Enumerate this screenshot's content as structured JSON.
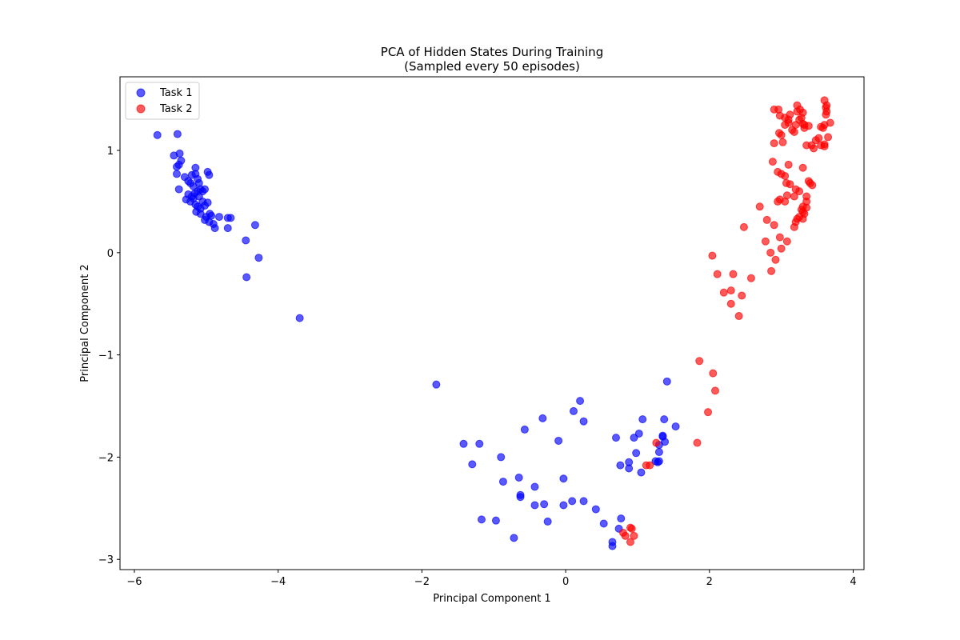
{
  "chart_data": {
    "type": "scatter",
    "title": "PCA of Hidden States During Training",
    "subtitle": "(Sampled every 50 episodes)",
    "xlabel": "Principal Component 1",
    "ylabel": "Principal Component 2",
    "xlim": [
      -6.2,
      4.15
    ],
    "ylim": [
      -3.1,
      1.72
    ],
    "xticks": [
      -6,
      -4,
      -2,
      0,
      2,
      4
    ],
    "yticks": [
      -3,
      -2,
      -1,
      0,
      1
    ],
    "grid": false,
    "legend_position": "top-left",
    "series": [
      {
        "name": "Task 1",
        "color": "#0000ff",
        "alpha": 0.65,
        "points": [
          [
            -5.68,
            1.15
          ],
          [
            -5.4,
            1.16
          ],
          [
            -5.45,
            0.95
          ],
          [
            -5.37,
            0.97
          ],
          [
            -5.35,
            0.9
          ],
          [
            -5.41,
            0.84
          ],
          [
            -5.38,
            0.86
          ],
          [
            -5.41,
            0.77
          ],
          [
            -5.38,
            0.62
          ],
          [
            -5.3,
            0.74
          ],
          [
            -5.25,
            0.7
          ],
          [
            -5.2,
            0.76
          ],
          [
            -5.15,
            0.83
          ],
          [
            -5.15,
            0.77
          ],
          [
            -5.22,
            0.68
          ],
          [
            -5.18,
            0.65
          ],
          [
            -5.12,
            0.72
          ],
          [
            -5.1,
            0.68
          ],
          [
            -5.08,
            0.62
          ],
          [
            -5.05,
            0.6
          ],
          [
            -5.12,
            0.6
          ],
          [
            -5.16,
            0.58
          ],
          [
            -5.2,
            0.55
          ],
          [
            -5.25,
            0.57
          ],
          [
            -5.28,
            0.52
          ],
          [
            -5.22,
            0.5
          ],
          [
            -5.18,
            0.53
          ],
          [
            -5.1,
            0.55
          ],
          [
            -5.05,
            0.5
          ],
          [
            -5.15,
            0.47
          ],
          [
            -5.12,
            0.45
          ],
          [
            -5.08,
            0.43
          ],
          [
            -5.02,
            0.46
          ],
          [
            -4.98,
            0.49
          ],
          [
            -4.98,
            0.79
          ],
          [
            -4.96,
            0.76
          ],
          [
            -5.02,
            0.62
          ],
          [
            -5.14,
            0.4
          ],
          [
            -5.08,
            0.38
          ],
          [
            -5.0,
            0.35
          ],
          [
            -5.02,
            0.32
          ],
          [
            -4.96,
            0.3
          ],
          [
            -4.93,
            0.36
          ],
          [
            -4.95,
            0.38
          ],
          [
            -4.9,
            0.28
          ],
          [
            -4.88,
            0.24
          ],
          [
            -4.82,
            0.35
          ],
          [
            -4.7,
            0.34
          ],
          [
            -4.66,
            0.34
          ],
          [
            -4.7,
            0.24
          ],
          [
            -4.32,
            0.27
          ],
          [
            -4.45,
            0.12
          ],
          [
            -4.27,
            -0.05
          ],
          [
            -4.44,
            -0.24
          ],
          [
            -3.7,
            -0.64
          ],
          [
            -1.8,
            -1.29
          ],
          [
            -1.42,
            -1.87
          ],
          [
            -1.3,
            -2.07
          ],
          [
            -1.2,
            -1.87
          ],
          [
            -1.17,
            -2.61
          ],
          [
            -0.97,
            -2.62
          ],
          [
            -0.9,
            -2.0
          ],
          [
            -0.87,
            -2.24
          ],
          [
            -0.72,
            -2.79
          ],
          [
            -0.65,
            -2.2
          ],
          [
            -0.63,
            -2.37
          ],
          [
            -0.63,
            -2.39
          ],
          [
            -0.57,
            -1.73
          ],
          [
            -0.43,
            -2.29
          ],
          [
            -0.43,
            -2.47
          ],
          [
            -0.32,
            -1.62
          ],
          [
            -0.3,
            -2.46
          ],
          [
            -0.25,
            -2.63
          ],
          [
            -0.1,
            -1.84
          ],
          [
            -0.03,
            -2.21
          ],
          [
            -0.03,
            -2.47
          ],
          [
            0.09,
            -2.43
          ],
          [
            0.11,
            -1.55
          ],
          [
            0.2,
            -1.45
          ],
          [
            0.25,
            -1.65
          ],
          [
            0.25,
            -2.43
          ],
          [
            0.42,
            -2.51
          ],
          [
            0.53,
            -2.65
          ],
          [
            0.65,
            -2.83
          ],
          [
            0.65,
            -2.87
          ],
          [
            0.7,
            -1.81
          ],
          [
            0.74,
            -2.7
          ],
          [
            0.76,
            -2.08
          ],
          [
            0.77,
            -2.6
          ],
          [
            0.88,
            -2.05
          ],
          [
            0.88,
            -2.11
          ],
          [
            0.95,
            -1.81
          ],
          [
            0.98,
            -1.96
          ],
          [
            1.02,
            -1.77
          ],
          [
            1.05,
            -2.15
          ],
          [
            1.07,
            -1.63
          ],
          [
            1.25,
            -2.04
          ],
          [
            1.28,
            -2.05
          ],
          [
            1.3,
            -2.04
          ],
          [
            1.3,
            -1.95
          ],
          [
            1.3,
            -1.88
          ],
          [
            1.35,
            -1.8
          ],
          [
            1.35,
            -1.79
          ],
          [
            1.37,
            -1.63
          ],
          [
            1.38,
            -1.85
          ],
          [
            1.41,
            -1.26
          ],
          [
            1.53,
            -1.7
          ]
        ]
      },
      {
        "name": "Task 2",
        "color": "#ff0000",
        "alpha": 0.65,
        "points": [
          [
            1.86,
            -1.06
          ],
          [
            2.05,
            -1.18
          ],
          [
            2.08,
            -1.35
          ],
          [
            1.98,
            -1.56
          ],
          [
            1.83,
            -1.86
          ],
          [
            1.26,
            -1.86
          ],
          [
            1.17,
            -2.08
          ],
          [
            1.12,
            -2.08
          ],
          [
            0.9,
            -2.69
          ],
          [
            0.92,
            -2.7
          ],
          [
            0.95,
            -2.77
          ],
          [
            0.8,
            -2.74
          ],
          [
            0.83,
            -2.77
          ],
          [
            0.9,
            -2.83
          ],
          [
            2.04,
            -0.03
          ],
          [
            2.11,
            -0.21
          ],
          [
            2.33,
            -0.21
          ],
          [
            2.2,
            -0.39
          ],
          [
            2.3,
            -0.37
          ],
          [
            2.3,
            -0.5
          ],
          [
            2.45,
            -0.42
          ],
          [
            2.41,
            -0.62
          ],
          [
            2.58,
            -0.25
          ],
          [
            2.48,
            0.25
          ],
          [
            2.7,
            0.45
          ],
          [
            2.8,
            0.32
          ],
          [
            2.78,
            0.11
          ],
          [
            2.85,
            0.0
          ],
          [
            2.92,
            -0.07
          ],
          [
            2.86,
            -0.18
          ],
          [
            2.98,
            0.15
          ],
          [
            3.0,
            0.04
          ],
          [
            3.08,
            0.11
          ],
          [
            2.9,
            0.27
          ],
          [
            2.95,
            0.5
          ],
          [
            2.98,
            0.52
          ],
          [
            3.05,
            0.5
          ],
          [
            3.08,
            0.56
          ],
          [
            3.12,
            0.67
          ],
          [
            3.07,
            0.68
          ],
          [
            3.18,
            0.55
          ],
          [
            3.2,
            0.62
          ],
          [
            3.25,
            0.6
          ],
          [
            3.22,
            0.33
          ],
          [
            3.25,
            0.35
          ],
          [
            3.28,
            0.42
          ],
          [
            3.3,
            0.45
          ],
          [
            3.35,
            0.5
          ],
          [
            3.32,
            0.38
          ],
          [
            3.35,
            0.55
          ],
          [
            3.4,
            0.68
          ],
          [
            3.43,
            0.66
          ],
          [
            3.18,
            0.25
          ],
          [
            3.2,
            0.3
          ],
          [
            3.3,
            0.33
          ],
          [
            3.35,
            0.44
          ],
          [
            2.88,
            0.89
          ],
          [
            2.95,
            0.79
          ],
          [
            3.0,
            0.77
          ],
          [
            3.05,
            0.75
          ],
          [
            3.1,
            0.86
          ],
          [
            3.3,
            0.83
          ],
          [
            3.38,
            0.7
          ],
          [
            3.3,
            0.4
          ],
          [
            2.9,
            1.07
          ],
          [
            3.02,
            1.08
          ],
          [
            3.05,
            1.25
          ],
          [
            3.0,
            1.15
          ],
          [
            2.97,
            1.17
          ],
          [
            3.1,
            1.27
          ],
          [
            3.12,
            1.35
          ],
          [
            3.15,
            1.2
          ],
          [
            3.2,
            1.25
          ],
          [
            3.22,
            1.38
          ],
          [
            3.25,
            1.3
          ],
          [
            3.28,
            1.32
          ],
          [
            3.3,
            1.26
          ],
          [
            3.32,
            1.25
          ],
          [
            3.22,
            1.44
          ],
          [
            3.3,
            1.37
          ],
          [
            3.38,
            1.24
          ],
          [
            3.42,
            1.05
          ],
          [
            3.45,
            1.02
          ],
          [
            3.48,
            1.1
          ],
          [
            3.52,
            1.12
          ],
          [
            3.55,
            1.23
          ],
          [
            3.55,
            1.05
          ],
          [
            3.6,
            1.04
          ],
          [
            3.6,
            1.25
          ],
          [
            3.62,
            1.35
          ],
          [
            3.62,
            1.42
          ],
          [
            3.63,
            1.38
          ],
          [
            3.6,
            1.49
          ],
          [
            3.63,
            1.44
          ],
          [
            3.65,
            1.13
          ],
          [
            3.68,
            1.27
          ],
          [
            3.58,
            1.22
          ],
          [
            3.35,
            1.05
          ],
          [
            3.32,
            1.22
          ],
          [
            3.18,
            1.18
          ],
          [
            2.9,
            1.4
          ],
          [
            2.96,
            1.4
          ],
          [
            2.98,
            1.34
          ],
          [
            3.05,
            1.32
          ],
          [
            3.1,
            1.3
          ],
          [
            3.26,
            1.4
          ],
          [
            3.6,
            1.06
          ]
        ]
      }
    ]
  }
}
